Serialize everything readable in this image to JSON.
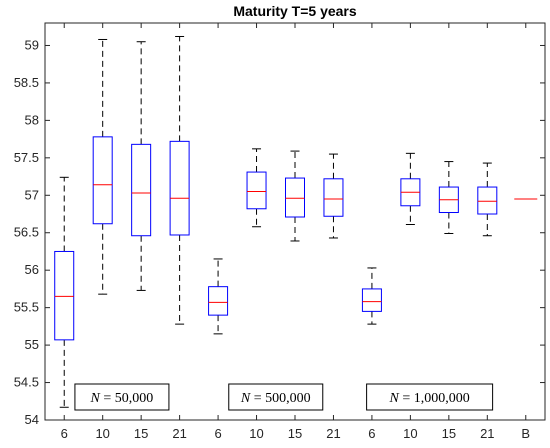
{
  "chart_data": {
    "type": "box",
    "title": "Maturity T=5 years",
    "xlabel": "",
    "ylabel": "",
    "ylim": [
      54,
      59.3
    ],
    "yticks": [
      54,
      54.5,
      55,
      55.5,
      56,
      56.5,
      57,
      57.5,
      58,
      58.5,
      59
    ],
    "ytick_labels": [
      "54",
      "54.5",
      "55",
      "55.5",
      "56",
      "56.5",
      "57",
      "57.5",
      "58",
      "58.5",
      "59"
    ],
    "categories": [
      "6",
      "10",
      "15",
      "21",
      "6",
      "10",
      "15",
      "21",
      "6",
      "10",
      "15",
      "21",
      "B"
    ],
    "groups": [
      {
        "label": "N = 50,000",
        "label_var": "N",
        "label_value": "50,000"
      },
      {
        "label": "N = 500,000",
        "label_var": "N",
        "label_value": "500,000"
      },
      {
        "label": "N = 1,000,000",
        "label_var": "N",
        "label_value": "1,000,000"
      }
    ],
    "boxes": [
      {
        "category": "6",
        "whisker_low": 54.17,
        "q1": 55.07,
        "median": 55.65,
        "q3": 56.25,
        "whisker_high": 57.24
      },
      {
        "category": "10",
        "whisker_low": 55.68,
        "q1": 56.62,
        "median": 57.14,
        "q3": 57.78,
        "whisker_high": 59.08
      },
      {
        "category": "15",
        "whisker_low": 55.73,
        "q1": 56.46,
        "median": 57.03,
        "q3": 57.68,
        "whisker_high": 59.05
      },
      {
        "category": "21",
        "whisker_low": 55.28,
        "q1": 56.47,
        "median": 56.96,
        "q3": 57.72,
        "whisker_high": 59.12
      },
      {
        "category": "6",
        "whisker_low": 55.15,
        "q1": 55.4,
        "median": 55.57,
        "q3": 55.78,
        "whisker_high": 56.15
      },
      {
        "category": "10",
        "whisker_low": 56.58,
        "q1": 56.82,
        "median": 57.05,
        "q3": 57.31,
        "whisker_high": 57.62
      },
      {
        "category": "15",
        "whisker_low": 56.39,
        "q1": 56.71,
        "median": 56.96,
        "q3": 57.23,
        "whisker_high": 57.59
      },
      {
        "category": "21",
        "whisker_low": 56.43,
        "q1": 56.72,
        "median": 56.95,
        "q3": 57.22,
        "whisker_high": 57.55
      },
      {
        "category": "6",
        "whisker_low": 55.28,
        "q1": 55.45,
        "median": 55.58,
        "q3": 55.75,
        "whisker_high": 56.03
      },
      {
        "category": "10",
        "whisker_low": 56.61,
        "q1": 56.86,
        "median": 57.04,
        "q3": 57.22,
        "whisker_high": 57.56
      },
      {
        "category": "15",
        "whisker_low": 56.49,
        "q1": 56.77,
        "median": 56.94,
        "q3": 57.11,
        "whisker_high": 57.45
      },
      {
        "category": "21",
        "whisker_low": 56.46,
        "q1": 56.75,
        "median": 56.92,
        "q3": 57.11,
        "whisker_high": 57.43
      }
    ],
    "benchmark": {
      "category": "B",
      "value": 56.95
    },
    "grid": false,
    "colors": {
      "box": "#0000ff",
      "median": "#ff0000",
      "whisker": "#000000",
      "axes": "#262626"
    }
  }
}
